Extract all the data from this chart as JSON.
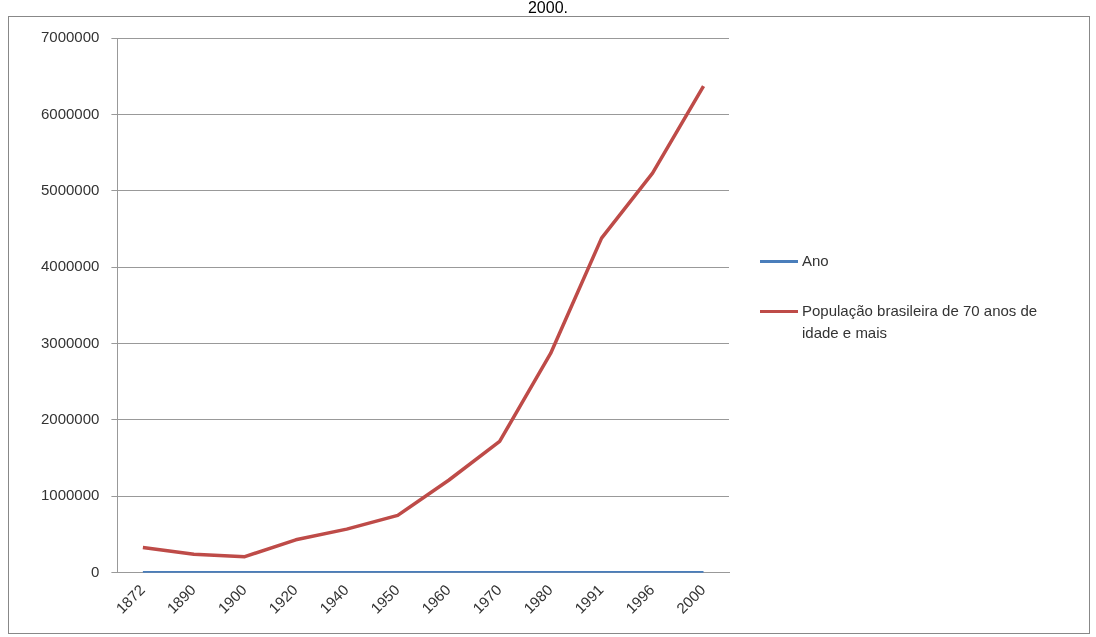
{
  "chart_data": {
    "type": "line",
    "title": "2000.",
    "categories": [
      "1872",
      "1890",
      "1900",
      "1920",
      "1940",
      "1950",
      "1960",
      "1970",
      "1980",
      "1991",
      "1996",
      "2000"
    ],
    "series": [
      {
        "name": "Ano",
        "color": "#4a7ebb",
        "values": [
          0,
          0,
          0,
          0,
          0,
          0,
          0,
          0,
          0,
          0,
          0,
          0
        ]
      },
      {
        "name": "População brasileira de 70 anos de idade e mais",
        "color": "#be4b48",
        "values": [
          330000,
          240000,
          210000,
          430000,
          570000,
          750000,
          1210000,
          1720000,
          2870000,
          4380000,
          5230000,
          6370000
        ]
      }
    ],
    "ylim": [
      0,
      7000000
    ],
    "yticks": [
      0,
      1000000,
      2000000,
      3000000,
      4000000,
      5000000,
      6000000,
      7000000
    ],
    "grid": "y",
    "legend": "right",
    "marker": "none",
    "line_style": "solid"
  }
}
